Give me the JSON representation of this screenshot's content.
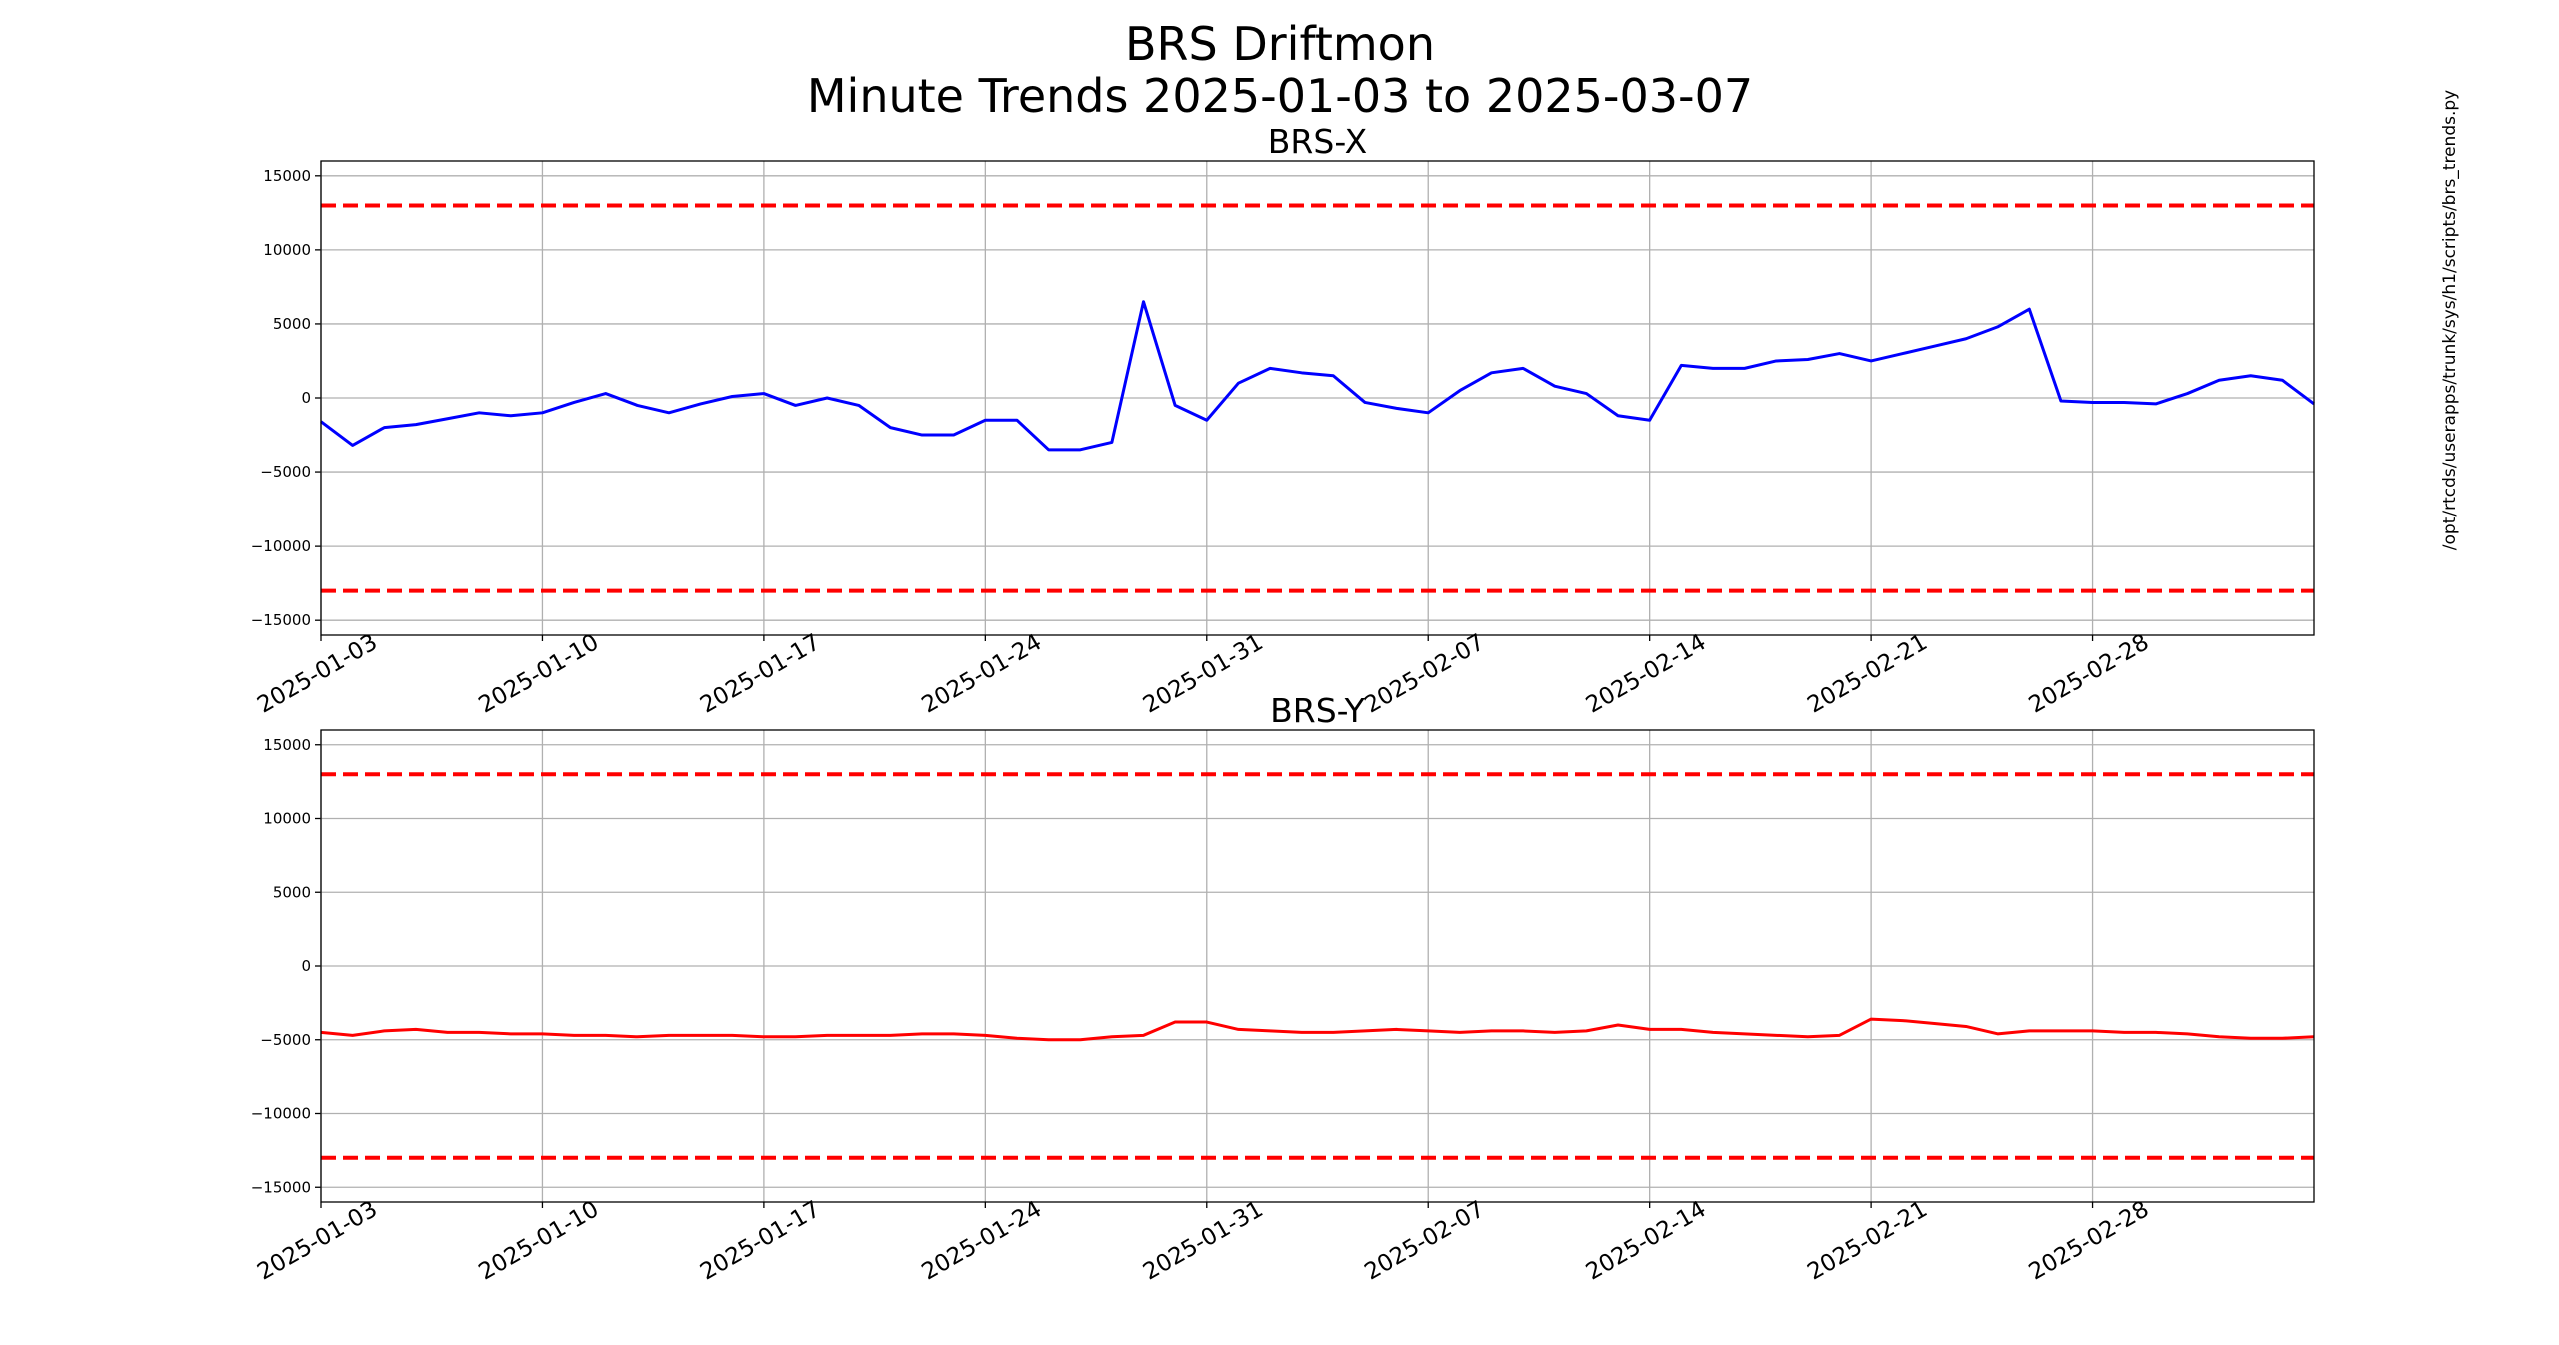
{
  "title": "BRS Driftmon",
  "subtitle": "Minute Trends 2025-01-03  to 2025-03-07",
  "side_note": "/opt/rtcds/userapps/trunk/sys/h1/scripts/brs_trends.py",
  "chart_data": [
    {
      "type": "line",
      "title": "BRS-X",
      "x": [
        "2025-01-03",
        "2025-01-04",
        "2025-01-05",
        "2025-01-06",
        "2025-01-07",
        "2025-01-08",
        "2025-01-09",
        "2025-01-10",
        "2025-01-11",
        "2025-01-12",
        "2025-01-13",
        "2025-01-14",
        "2025-01-15",
        "2025-01-16",
        "2025-01-17",
        "2025-01-18",
        "2025-01-19",
        "2025-01-20",
        "2025-01-21",
        "2025-01-22",
        "2025-01-23",
        "2025-01-24",
        "2025-01-25",
        "2025-01-26",
        "2025-01-27",
        "2025-01-28",
        "2025-01-29",
        "2025-01-30",
        "2025-01-31",
        "2025-02-01",
        "2025-02-02",
        "2025-02-03",
        "2025-02-04",
        "2025-02-05",
        "2025-02-06",
        "2025-02-07",
        "2025-02-08",
        "2025-02-09",
        "2025-02-10",
        "2025-02-11",
        "2025-02-12",
        "2025-02-13",
        "2025-02-14",
        "2025-02-15",
        "2025-02-16",
        "2025-02-17",
        "2025-02-18",
        "2025-02-19",
        "2025-02-20",
        "2025-02-21",
        "2025-02-22",
        "2025-02-23",
        "2025-02-24",
        "2025-02-25",
        "2025-02-26",
        "2025-02-27",
        "2025-02-28",
        "2025-03-01",
        "2025-03-02",
        "2025-03-03",
        "2025-03-04",
        "2025-03-05",
        "2025-03-06",
        "2025-03-07"
      ],
      "values": [
        -1600,
        -3200,
        -2000,
        -1800,
        -1400,
        -1000,
        -1200,
        -1000,
        -300,
        300,
        -500,
        -1000,
        -400,
        100,
        300,
        -500,
        0,
        -500,
        -2000,
        -2500,
        -2500,
        -1500,
        -1500,
        -3500,
        -3500,
        -3000,
        6500,
        -500,
        -1500,
        1000,
        2000,
        1700,
        1500,
        -300,
        -700,
        -1000,
        500,
        1700,
        2000,
        800,
        300,
        -1200,
        -1500,
        2200,
        2000,
        2000,
        2500,
        2600,
        3000,
        2500,
        3000,
        3500,
        4000,
        4800,
        6000,
        -200,
        -300,
        -300,
        -400,
        300,
        1200,
        1500,
        1200,
        -400
      ],
      "color": "#0000ff",
      "thresholds": [
        13000,
        -13000
      ],
      "threshold_color": "#ff0000",
      "xlim": [
        "2025-01-03",
        "2025-03-07"
      ],
      "xticks": [
        "2025-01-03",
        "2025-01-10",
        "2025-01-17",
        "2025-01-24",
        "2025-01-31",
        "2025-02-07",
        "2025-02-14",
        "2025-02-21",
        "2025-02-28"
      ],
      "ylim": [
        -16000,
        16000
      ],
      "yticks": [
        {
          "value": -15000,
          "label": "−15000"
        },
        {
          "value": -10000,
          "label": "−10000"
        },
        {
          "value": -5000,
          "label": "−5000"
        },
        0,
        5000,
        10000,
        15000
      ],
      "grid": true
    },
    {
      "type": "line",
      "title": "BRS-Y",
      "x": [
        "2025-01-03",
        "2025-01-04",
        "2025-01-05",
        "2025-01-06",
        "2025-01-07",
        "2025-01-08",
        "2025-01-09",
        "2025-01-10",
        "2025-01-11",
        "2025-01-12",
        "2025-01-13",
        "2025-01-14",
        "2025-01-15",
        "2025-01-16",
        "2025-01-17",
        "2025-01-18",
        "2025-01-19",
        "2025-01-20",
        "2025-01-21",
        "2025-01-22",
        "2025-01-23",
        "2025-01-24",
        "2025-01-25",
        "2025-01-26",
        "2025-01-27",
        "2025-01-28",
        "2025-01-29",
        "2025-01-30",
        "2025-01-31",
        "2025-02-01",
        "2025-02-02",
        "2025-02-03",
        "2025-02-04",
        "2025-02-05",
        "2025-02-06",
        "2025-02-07",
        "2025-02-08",
        "2025-02-09",
        "2025-02-10",
        "2025-02-11",
        "2025-02-12",
        "2025-02-13",
        "2025-02-14",
        "2025-02-15",
        "2025-02-16",
        "2025-02-17",
        "2025-02-18",
        "2025-02-19",
        "2025-02-20",
        "2025-02-21",
        "2025-02-22",
        "2025-02-23",
        "2025-02-24",
        "2025-02-25",
        "2025-02-26",
        "2025-02-27",
        "2025-02-28",
        "2025-03-01",
        "2025-03-02",
        "2025-03-03",
        "2025-03-04",
        "2025-03-05",
        "2025-03-06",
        "2025-03-07"
      ],
      "values": [
        -4500,
        -4700,
        -4400,
        -4300,
        -4500,
        -4500,
        -4600,
        -4600,
        -4700,
        -4700,
        -4800,
        -4700,
        -4700,
        -4700,
        -4800,
        -4800,
        -4700,
        -4700,
        -4700,
        -4600,
        -4600,
        -4700,
        -4900,
        -5000,
        -5000,
        -4800,
        -4700,
        -3800,
        -3800,
        -4300,
        -4400,
        -4500,
        -4500,
        -4400,
        -4300,
        -4400,
        -4500,
        -4400,
        -4400,
        -4500,
        -4400,
        -4000,
        -4300,
        -4300,
        -4500,
        -4600,
        -4700,
        -4800,
        -4700,
        -3600,
        -3700,
        -3900,
        -4100,
        -4600,
        -4400,
        -4400,
        -4400,
        -4500,
        -4500,
        -4600,
        -4800,
        -4900,
        -4900,
        -4800
      ],
      "color": "#ff0000",
      "thresholds": [
        13000,
        -13000
      ],
      "threshold_color": "#ff0000",
      "xlim": [
        "2025-01-03",
        "2025-03-07"
      ],
      "xticks": [
        "2025-01-03",
        "2025-01-10",
        "2025-01-17",
        "2025-01-24",
        "2025-01-31",
        "2025-02-07",
        "2025-02-14",
        "2025-02-21",
        "2025-02-28"
      ],
      "ylim": [
        -16000,
        16000
      ],
      "yticks": [
        {
          "value": -15000,
          "label": "−15000"
        },
        {
          "value": -10000,
          "label": "−10000"
        },
        {
          "value": -5000,
          "label": "−5000"
        },
        0,
        5000,
        10000,
        15000
      ],
      "grid": true
    }
  ]
}
